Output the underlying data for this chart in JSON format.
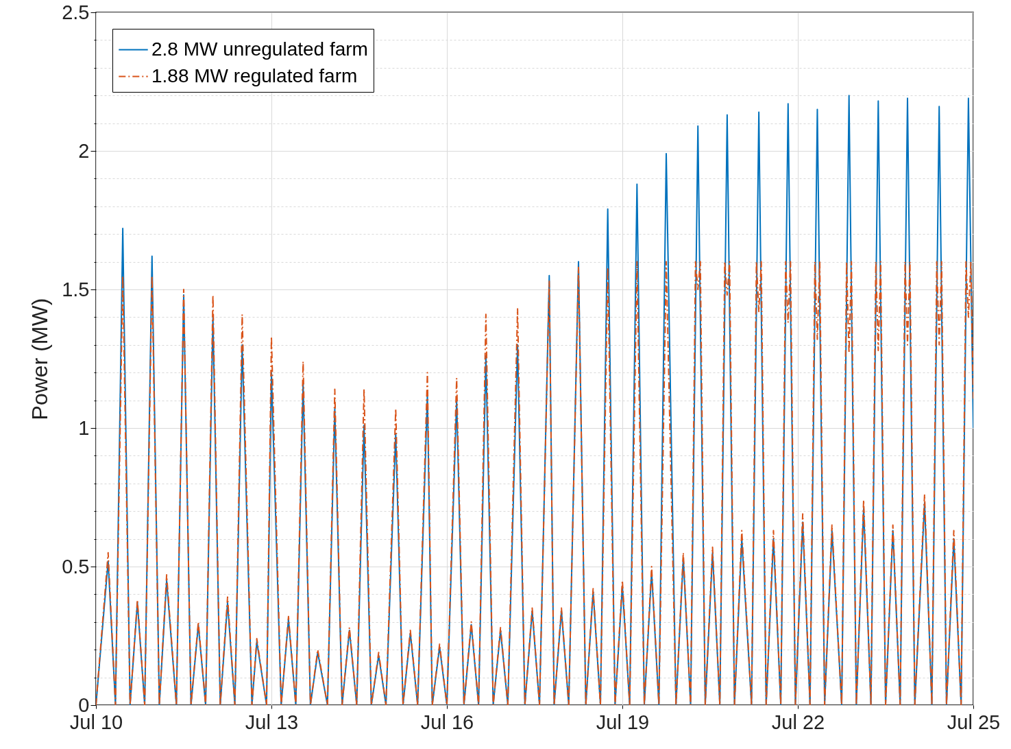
{
  "chart_data": {
    "type": "line",
    "ylabel": "Power (MW)",
    "xlim": [
      "--07-10",
      "--07-25"
    ],
    "xticks": [
      {
        "value": "--07-10",
        "label": "Jul 10"
      },
      {
        "value": "--07-13",
        "label": "Jul 13"
      },
      {
        "value": "--07-16",
        "label": "Jul 16"
      },
      {
        "value": "--07-19",
        "label": "Jul 19"
      },
      {
        "value": "--07-22",
        "label": "Jul 22"
      },
      {
        "value": "--07-25",
        "label": "Jul 25"
      }
    ],
    "ylim": [
      0,
      2.5
    ],
    "yticks": [
      0,
      {
        "value": 0.1,
        "label": null
      },
      {
        "value": 0.2,
        "label": null
      },
      {
        "value": 0.3,
        "label": null
      },
      {
        "value": 0.4,
        "label": null
      },
      0.5,
      {
        "value": 0.6,
        "label": null
      },
      {
        "value": 0.7,
        "label": null
      },
      {
        "value": 0.8,
        "label": null
      },
      {
        "value": 0.9,
        "label": null
      },
      1,
      {
        "value": 1.1,
        "label": null
      },
      {
        "value": 1.2,
        "label": null
      },
      {
        "value": 1.3,
        "label": null
      },
      {
        "value": 1.4,
        "label": null
      },
      1.5,
      {
        "value": 1.6,
        "label": null
      },
      {
        "value": 1.7,
        "label": null
      },
      {
        "value": 1.8,
        "label": null
      },
      {
        "value": 1.9,
        "label": null
      },
      2,
      {
        "value": 2.1,
        "label": null
      },
      {
        "value": 2.2,
        "label": null
      },
      {
        "value": 2.3,
        "label": null
      },
      {
        "value": 2.4,
        "label": null
      },
      2.5
    ],
    "grid": true,
    "legend": "top left",
    "series": [
      {
        "name": "2.8 MW unregulated farm",
        "color": "#0072bd",
        "line_style": "solid",
        "x": [
          "--07-10T00:00",
          "--07-10T05:00",
          "--07-10T08:00",
          "--07-10T11:00",
          "--07-10T14:00",
          "--07-10T17:00",
          "--07-10T20:00",
          "--07-10T23:00",
          "--07-11T02:00",
          "--07-11T05:00",
          "--07-11T09:00",
          "--07-11T12:00",
          "--07-11T15:00",
          "--07-11T18:00",
          "--07-11T21:00",
          "--07-12T00:00",
          "--07-12T03:00",
          "--07-12T06:00",
          "--07-12T09:00",
          "--07-12T12:00",
          "--07-12T16:00",
          "--07-12T18:00",
          "--07-12T22:00",
          "--07-13T00:00",
          "--07-13T04:00",
          "--07-13T07:00",
          "--07-13T10:00",
          "--07-13T13:00",
          "--07-13T16:00",
          "--07-13T19:00",
          "--07-13T23:00",
          "--07-14T02:00",
          "--07-14T05:00",
          "--07-14T08:00",
          "--07-14T11:00",
          "--07-14T14:00",
          "--07-14T17:00",
          "--07-14T20:00",
          "--07-14T23:00",
          "--07-15T03:00",
          "--07-15T06:00",
          "--07-15T09:00",
          "--07-15T12:00",
          "--07-15T16:00",
          "--07-15T18:00",
          "--07-15T21:00",
          "--07-16T00:00",
          "--07-16T04:00",
          "--07-16T07:00",
          "--07-16T10:00",
          "--07-16T13:00",
          "--07-16T16:00",
          "--07-16T19:00",
          "--07-16T22:00",
          "--07-17T01:00",
          "--07-17T05:00",
          "--07-17T08:00",
          "--07-17T11:00",
          "--07-17T14:00",
          "--07-17T18:00",
          "--07-17T20:00",
          "--07-17T23:00",
          "--07-18T02:00",
          "--07-18T06:00",
          "--07-18T09:00",
          "--07-18T12:00",
          "--07-18T15:00",
          "--07-18T18:00",
          "--07-18T21:00",
          "--07-19T00:00",
          "--07-19T03:00",
          "--07-19T06:00",
          "--07-19T09:00",
          "--07-19T12:00",
          "--07-19T15:00",
          "--07-19T18:00",
          "--07-19T22:00",
          "--07-20T01:00",
          "--07-20T04:00",
          "--07-20T07:00",
          "--07-20T10:00",
          "--07-20T13:00",
          "--07-20T16:00",
          "--07-20T19:00",
          "--07-20T22:00",
          "--07-21T01:00",
          "--07-21T05:00",
          "--07-21T08:00",
          "--07-21T11:00",
          "--07-21T14:00",
          "--07-21T17:00",
          "--07-21T20:00",
          "--07-21T23:00",
          "--07-22T02:00",
          "--07-22T05:00",
          "--07-22T08:00",
          "--07-22T11:00",
          "--07-22T14:00",
          "--07-22T18:00",
          "--07-22T21:00",
          "--07-23T00:00",
          "--07-23T03:00",
          "--07-23T06:00",
          "--07-23T09:00",
          "--07-23T12:00",
          "--07-23T15:00",
          "--07-23T18:00",
          "--07-23T21:00",
          "--07-24T00:00",
          "--07-24T04:00",
          "--07-24T07:00",
          "--07-24T10:00",
          "--07-24T13:00",
          "--07-24T16:00",
          "--07-24T19:00",
          "--07-24T22:00",
          "--07-25T00:00"
        ],
        "values": [
          0,
          0.52,
          0,
          1.72,
          0,
          0.37,
          0,
          1.62,
          0,
          0.45,
          0,
          1.48,
          0,
          0.29,
          0,
          1.4,
          0,
          0.37,
          0,
          1.3,
          0,
          0.23,
          0,
          1.2,
          0,
          0.31,
          0,
          1.16,
          0,
          0.19,
          0,
          1.07,
          0,
          0.27,
          0,
          1.01,
          0,
          0.18,
          0,
          0.98,
          0,
          0.26,
          0,
          1.12,
          0,
          0.21,
          0,
          1.1,
          0,
          0.29,
          0,
          1.26,
          0,
          0.27,
          0,
          1.3,
          0,
          0.34,
          0,
          1.55,
          0,
          0.34,
          0,
          1.6,
          0,
          0.41,
          0,
          1.79,
          0,
          0.43,
          0,
          1.88,
          0,
          0.48,
          0,
          1.99,
          0,
          0.53,
          0,
          2.09,
          0,
          0.55,
          0,
          2.13,
          0,
          0.6,
          0,
          2.14,
          0,
          0.6,
          0,
          2.17,
          0,
          0.66,
          0,
          2.15,
          0,
          0.63,
          0,
          2.2,
          0,
          0.71,
          0,
          2.18,
          0,
          0.63,
          0,
          2.19,
          0,
          0.73,
          0,
          2.16,
          0,
          0.6,
          0,
          2.19,
          1.0
        ]
      },
      {
        "name": "1.88 MW regulated farm",
        "color": "#d95319",
        "line_style": "dashed",
        "x": [
          "--07-10T00:00",
          "--07-10T05:00",
          "--07-10T08:00",
          "--07-10T11:00",
          "--07-10T14:00",
          "--07-10T17:00",
          "--07-10T20:00",
          "--07-10T23:00",
          "--07-11T02:00",
          "--07-11T05:00",
          "--07-11T09:00",
          "--07-11T12:00",
          "--07-11T15:00",
          "--07-11T18:00",
          "--07-11T21:00",
          "--07-12T00:00",
          "--07-12T03:00",
          "--07-12T06:00",
          "--07-12T09:00",
          "--07-12T12:00",
          "--07-12T16:00",
          "--07-12T18:00",
          "--07-12T22:00",
          "--07-13T00:00",
          "--07-13T04:00",
          "--07-13T07:00",
          "--07-13T10:00",
          "--07-13T13:00",
          "--07-13T16:00",
          "--07-13T19:00",
          "--07-13T23:00",
          "--07-14T02:00",
          "--07-14T05:00",
          "--07-14T08:00",
          "--07-14T11:00",
          "--07-14T14:00",
          "--07-14T17:00",
          "--07-14T20:00",
          "--07-14T23:00",
          "--07-15T03:00",
          "--07-15T06:00",
          "--07-15T09:00",
          "--07-15T12:00",
          "--07-15T16:00",
          "--07-15T18:00",
          "--07-15T21:00",
          "--07-16T00:00",
          "--07-16T04:00",
          "--07-16T07:00",
          "--07-16T10:00",
          "--07-16T13:00",
          "--07-16T16:00",
          "--07-16T19:00",
          "--07-16T22:00",
          "--07-17T01:00",
          "--07-17T05:00",
          "--07-17T08:00",
          "--07-17T11:00",
          "--07-17T14:00",
          "--07-17T18:00",
          "--07-17T20:00",
          "--07-17T23:00",
          "--07-18T02:00",
          "--07-18T06:00",
          "--07-18T09:00",
          "--07-18T12:00",
          "--07-18T15:00",
          "--07-18T18:00",
          "--07-18T21:00",
          "--07-19T00:00",
          "--07-19T03:00",
          "--07-19T06:00",
          "--07-19T09:00",
          "--07-19T12:00",
          "--07-19T15:00",
          "--07-19T18:00",
          "--07-19T22:00",
          "--07-20T01:00",
          "--07-20T04:00",
          "--07-20T06:00",
          "--07-20T07:00",
          "--07-20T08:00",
          "--07-20T10:00",
          "--07-20T13:00",
          "--07-20T16:00",
          "--07-20T18:00",
          "--07-20T19:00",
          "--07-20T20:00",
          "--07-20T22:00",
          "--07-21T01:00",
          "--07-21T05:00",
          "--07-21T07:00",
          "--07-21T08:00",
          "--07-21T09:00",
          "--07-21T11:00",
          "--07-21T14:00",
          "--07-21T17:00",
          "--07-21T19:00",
          "--07-21T20:00",
          "--07-21T21:00",
          "--07-21T23:00",
          "--07-22T02:00",
          "--07-22T05:00",
          "--07-22T07:00",
          "--07-22T08:00",
          "--07-22T09:00",
          "--07-22T11:00",
          "--07-22T14:00",
          "--07-22T18:00",
          "--07-22T20:00",
          "--07-22T21:00",
          "--07-22T22:00",
          "--07-23T00:00",
          "--07-23T03:00",
          "--07-23T06:00",
          "--07-23T08:00",
          "--07-23T09:00",
          "--07-23T10:00",
          "--07-23T12:00",
          "--07-23T15:00",
          "--07-23T18:00",
          "--07-23T20:00",
          "--07-23T21:00",
          "--07-23T22:00",
          "--07-24T00:00",
          "--07-24T04:00",
          "--07-24T07:00",
          "--07-24T09:00",
          "--07-24T10:00",
          "--07-24T11:00",
          "--07-24T13:00",
          "--07-24T16:00",
          "--07-24T19:00",
          "--07-24T21:00",
          "--07-24T22:00",
          "--07-24T23:00",
          "--07-25T00:00"
        ],
        "values": [
          0,
          0.55,
          0,
          1.55,
          0,
          0.38,
          0,
          1.55,
          0,
          0.47,
          0,
          1.5,
          0,
          0.3,
          0,
          1.48,
          0,
          0.39,
          0,
          1.41,
          0,
          0.24,
          0,
          1.33,
          0,
          0.32,
          0,
          1.24,
          0,
          0.2,
          0,
          1.14,
          0,
          0.28,
          0,
          1.14,
          0,
          0.19,
          0,
          1.07,
          0,
          0.27,
          0,
          1.2,
          0,
          0.22,
          0,
          1.18,
          0,
          0.3,
          0,
          1.41,
          0,
          0.28,
          0,
          1.43,
          0,
          0.35,
          0,
          1.53,
          0,
          0.35,
          0,
          1.58,
          0,
          0.42,
          0,
          1.58,
          0,
          0.45,
          0,
          1.6,
          0,
          0.5,
          0,
          1.6,
          0,
          0.55,
          0,
          1.6,
          1.5,
          1.6,
          0,
          0.57,
          0,
          1.6,
          1.48,
          1.6,
          0,
          0.63,
          0,
          1.6,
          1.42,
          1.6,
          0,
          0.63,
          0,
          1.6,
          1.38,
          1.6,
          0,
          0.69,
          0,
          1.6,
          1.32,
          1.6,
          0,
          0.65,
          0,
          1.6,
          1.27,
          1.6,
          0,
          0.74,
          0,
          1.6,
          1.28,
          1.6,
          0,
          0.65,
          0,
          1.6,
          1.3,
          1.6,
          0,
          0.76,
          0,
          1.6,
          1.3,
          1.6,
          0,
          0.63,
          0,
          1.6,
          1.4,
          1.6,
          1.1
        ]
      }
    ]
  }
}
